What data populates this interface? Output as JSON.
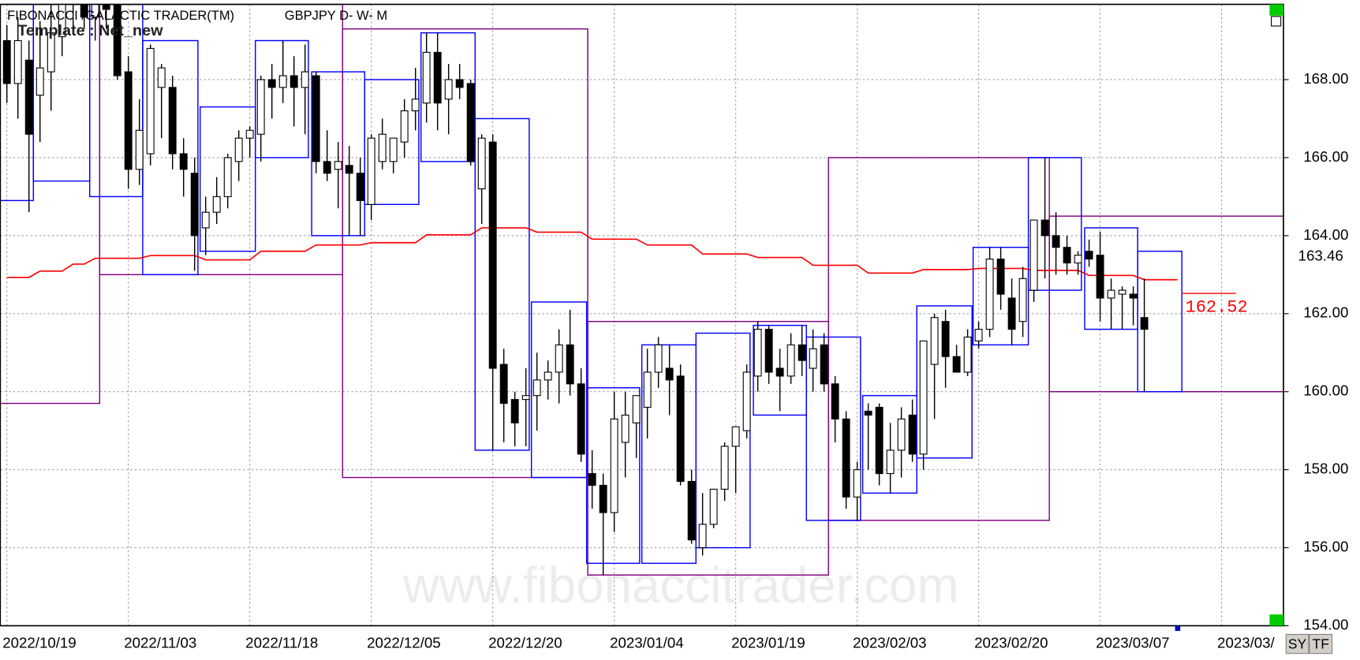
{
  "chart_data": {
    "type": "candlestick",
    "title": "FIBONACCI /GALACTIC TRADER(TM)",
    "symbol": "GBPJPY D- W- M",
    "template": "Template : Net_new",
    "watermark": "www.fibonaccitrader.com",
    "buttons": [
      "SY",
      "TF"
    ],
    "grid": true,
    "xlim": [
      -0.6,
      115.6
    ],
    "ylim": [
      154,
      169.93
    ],
    "yticks": [
      {
        "value": 154,
        "label": "154.00"
      },
      {
        "value": 156,
        "label": "156.00"
      },
      {
        "value": 158,
        "label": "158.00"
      },
      {
        "value": 160,
        "label": "160.00"
      },
      {
        "value": 162,
        "label": "162.00"
      },
      {
        "value": 164,
        "label": "164.00"
      },
      {
        "value": 166,
        "label": "166.00"
      },
      {
        "value": 168,
        "label": "168.00"
      }
    ],
    "xticks": [
      {
        "value": 0,
        "label": "2022/10/19"
      },
      {
        "value": 11,
        "label": "2022/11/03"
      },
      {
        "value": 22,
        "label": "2022/11/18"
      },
      {
        "value": 33,
        "label": "2022/12/05"
      },
      {
        "value": 44,
        "label": "2022/12/20"
      },
      {
        "value": 55,
        "label": "2023/01/04"
      },
      {
        "value": 66,
        "label": "2023/01/19"
      },
      {
        "value": 77,
        "label": "2023/02/03"
      },
      {
        "value": 88,
        "label": "2023/02/20"
      },
      {
        "value": 99,
        "label": "2023/03/07"
      },
      {
        "value": 110,
        "label": "2023/03/"
      }
    ],
    "candle_colors": {
      "up": "#ffffff",
      "down": "#000000",
      "outline": "#000000"
    },
    "candles": [
      [
        169.0,
        169.4,
        167.4,
        167.9
      ],
      [
        167.9,
        169.6,
        167.0,
        169.0
      ],
      [
        168.5,
        169.0,
        164.6,
        166.6
      ],
      [
        167.6,
        169.5,
        166.4,
        168.3
      ],
      [
        168.2,
        170.0,
        167.2,
        169.2
      ],
      [
        169.1,
        170.5,
        168.6,
        170.2
      ],
      [
        170.0,
        170.6,
        169.2,
        170.3
      ],
      [
        170.2,
        170.6,
        169.3,
        169.6
      ],
      [
        169.6,
        170.5,
        169.0,
        170.1
      ],
      [
        170.1,
        170.6,
        169.3,
        169.8
      ],
      [
        170.0,
        170.6,
        168.0,
        168.1
      ],
      [
        168.2,
        168.6,
        165.2,
        165.7
      ],
      [
        165.7,
        167.5,
        165.3,
        166.7
      ],
      [
        166.1,
        168.9,
        165.8,
        168.8
      ],
      [
        167.8,
        168.4,
        166.5,
        168.3
      ],
      [
        167.8,
        168.1,
        165.7,
        166.1
      ],
      [
        166.1,
        166.5,
        165.0,
        165.7
      ],
      [
        165.6,
        166.0,
        163.1,
        164.0
      ],
      [
        164.2,
        165.0,
        163.5,
        164.6
      ],
      [
        164.6,
        165.5,
        164.3,
        165.0
      ],
      [
        165.0,
        166.1,
        164.7,
        166.0
      ],
      [
        165.9,
        166.7,
        165.4,
        166.5
      ],
      [
        166.5,
        166.8,
        166.0,
        166.7
      ],
      [
        166.6,
        168.1,
        165.9,
        168.0
      ],
      [
        168.0,
        168.4,
        167.0,
        167.8
      ],
      [
        167.8,
        169.0,
        167.4,
        168.1
      ],
      [
        168.1,
        168.6,
        166.8,
        167.8
      ],
      [
        167.8,
        168.9,
        166.6,
        168.2
      ],
      [
        168.1,
        168.2,
        165.6,
        165.9
      ],
      [
        165.9,
        166.7,
        165.4,
        165.6
      ],
      [
        165.7,
        166.4,
        164.7,
        165.9
      ],
      [
        165.8,
        166.3,
        164.0,
        165.6
      ],
      [
        165.6,
        166.0,
        164.0,
        164.9
      ],
      [
        164.8,
        166.6,
        164.4,
        166.5
      ],
      [
        165.9,
        167.0,
        165.7,
        166.6
      ],
      [
        165.9,
        166.4,
        165.6,
        166.5
      ],
      [
        166.4,
        167.5,
        166.0,
        167.2
      ],
      [
        167.2,
        168.3,
        166.7,
        167.5
      ],
      [
        167.4,
        169.2,
        166.9,
        168.7
      ],
      [
        168.7,
        169.2,
        166.7,
        167.4
      ],
      [
        167.5,
        168.4,
        166.6,
        168.0
      ],
      [
        168.0,
        168.4,
        167.5,
        167.8
      ],
      [
        167.9,
        168.0,
        165.8,
        165.9
      ],
      [
        165.2,
        166.6,
        164.3,
        166.5
      ],
      [
        166.4,
        166.6,
        158.5,
        160.6
      ],
      [
        160.7,
        161.1,
        158.7,
        159.7
      ],
      [
        159.8,
        160.0,
        158.6,
        159.2
      ],
      [
        159.8,
        160.6,
        158.6,
        159.9
      ],
      [
        159.9,
        161.0,
        159.0,
        160.3
      ],
      [
        160.3,
        160.8,
        159.8,
        160.5
      ],
      [
        160.5,
        161.6,
        159.7,
        161.2
      ],
      [
        161.2,
        162.1,
        159.9,
        160.2
      ],
      [
        160.2,
        160.6,
        158.2,
        158.4
      ],
      [
        157.9,
        158.5,
        157.0,
        157.6
      ],
      [
        157.6,
        157.9,
        155.3,
        156.9
      ],
      [
        156.9,
        160.0,
        156.4,
        159.3
      ],
      [
        158.7,
        160.0,
        157.8,
        159.4
      ],
      [
        159.2,
        159.9,
        158.3,
        159.9
      ],
      [
        159.6,
        161.1,
        158.8,
        160.5
      ],
      [
        160.5,
        161.4,
        160.1,
        161.2
      ],
      [
        160.6,
        161.2,
        159.4,
        160.3
      ],
      [
        160.4,
        160.7,
        157.6,
        157.7
      ],
      [
        157.7,
        158.0,
        156.1,
        156.2
      ],
      [
        156.0,
        157.4,
        155.8,
        156.6
      ],
      [
        156.6,
        157.5,
        156.5,
        157.5
      ],
      [
        157.5,
        158.7,
        157.2,
        158.6
      ],
      [
        158.6,
        159.1,
        157.4,
        159.1
      ],
      [
        159.0,
        160.7,
        158.8,
        160.5
      ],
      [
        160.4,
        161.8,
        160.0,
        161.6
      ],
      [
        161.6,
        161.7,
        160.2,
        160.5
      ],
      [
        160.6,
        161.1,
        159.5,
        160.4
      ],
      [
        160.4,
        161.5,
        160.2,
        161.2
      ],
      [
        161.2,
        161.7,
        160.4,
        160.8
      ],
      [
        160.6,
        161.6,
        160.0,
        161.1
      ],
      [
        161.2,
        161.5,
        160.0,
        160.2
      ],
      [
        160.2,
        160.4,
        158.7,
        159.3
      ],
      [
        159.3,
        159.5,
        157.0,
        157.3
      ],
      [
        157.3,
        158.2,
        156.7,
        158.0
      ],
      [
        159.5,
        159.7,
        158.0,
        159.4
      ],
      [
        159.6,
        159.7,
        157.6,
        157.9
      ],
      [
        157.9,
        159.2,
        157.4,
        158.5
      ],
      [
        158.5,
        159.6,
        157.8,
        159.3
      ],
      [
        159.4,
        159.8,
        158.2,
        158.4
      ],
      [
        158.4,
        161.3,
        158.0,
        161.3
      ],
      [
        160.7,
        162.0,
        159.3,
        161.9
      ],
      [
        161.8,
        162.1,
        160.1,
        160.9
      ],
      [
        160.9,
        161.2,
        160.5,
        160.5
      ],
      [
        160.5,
        161.6,
        160.4,
        161.4
      ],
      [
        161.3,
        161.8,
        161.1,
        161.6
      ],
      [
        161.6,
        163.7,
        161.4,
        163.4
      ],
      [
        163.4,
        163.7,
        162.1,
        162.5
      ],
      [
        162.4,
        162.9,
        161.2,
        161.6
      ],
      [
        161.8,
        163.2,
        161.4,
        162.9
      ],
      [
        162.6,
        164.4,
        162.3,
        164.4
      ],
      [
        164.4,
        166.0,
        162.9,
        164.0
      ],
      [
        164.0,
        164.6,
        163.0,
        163.7
      ],
      [
        163.7,
        164.0,
        163.0,
        163.3
      ],
      [
        163.3,
        163.6,
        163.0,
        163.5
      ],
      [
        163.6,
        163.9,
        163.2,
        163.4
      ],
      [
        163.5,
        164.1,
        161.8,
        162.4
      ],
      [
        162.4,
        162.9,
        161.6,
        162.6
      ],
      [
        162.5,
        162.7,
        161.6,
        162.6
      ],
      [
        162.5,
        162.7,
        161.7,
        162.4
      ],
      [
        161.9,
        162.9,
        160.0,
        161.6
      ]
    ],
    "monthly_boxes": {
      "color": "#800080",
      "boxes": [
        [
          -0.6,
          8.4,
          159.7,
          169.93
        ],
        [
          8.4,
          30.4,
          163.0,
          169.93
        ],
        [
          30.4,
          52.6,
          157.8,
          169.3
        ],
        [
          52.6,
          74.4,
          155.3,
          161.8
        ],
        [
          74.4,
          94.4,
          156.7,
          166.0
        ],
        [
          94.4,
          115.6,
          160.0,
          164.5
        ]
      ]
    },
    "weekly_boxes": {
      "color": "#0000ff",
      "boxes": [
        [
          -0.6,
          2.4,
          164.9,
          169.93
        ],
        [
          2.4,
          7.5,
          165.4,
          169.93
        ],
        [
          7.5,
          12.3,
          165.0,
          169.93
        ],
        [
          12.3,
          17.3,
          163.0,
          169.0
        ],
        [
          17.5,
          22.5,
          163.6,
          167.3
        ],
        [
          22.5,
          27.3,
          166.0,
          169.0
        ],
        [
          27.6,
          32.4,
          164.0,
          168.2
        ],
        [
          32.4,
          37.3,
          164.8,
          168.0
        ],
        [
          37.5,
          42.4,
          165.9,
          169.2
        ],
        [
          42.4,
          47.3,
          158.5,
          167.0
        ],
        [
          47.5,
          52.5,
          157.8,
          162.3
        ],
        [
          52.5,
          57.3,
          155.6,
          160.1
        ],
        [
          57.5,
          62.4,
          155.6,
          161.2
        ],
        [
          62.4,
          67.3,
          156.0,
          161.5
        ],
        [
          67.6,
          72.4,
          159.4,
          161.7
        ],
        [
          72.4,
          77.3,
          156.7,
          161.4
        ],
        [
          77.5,
          82.4,
          157.4,
          159.9
        ],
        [
          82.4,
          87.4,
          158.3,
          162.2
        ],
        [
          87.5,
          92.5,
          161.2,
          163.7
        ],
        [
          92.5,
          97.3,
          162.6,
          166.0
        ],
        [
          97.6,
          102.4,
          161.6,
          164.2
        ],
        [
          102.4,
          106.4,
          160.0,
          163.6
        ]
      ]
    },
    "average_line": {
      "color": "#ff0000",
      "values": [
        162.93,
        162.93,
        162.93,
        163.09,
        163.09,
        163.09,
        163.27,
        163.27,
        163.42,
        163.42,
        163.42,
        163.42,
        163.42,
        163.49,
        163.49,
        163.49,
        163.49,
        163.49,
        163.38,
        163.38,
        163.38,
        163.38,
        163.38,
        163.6,
        163.6,
        163.6,
        163.6,
        163.6,
        163.76,
        163.76,
        163.76,
        163.76,
        163.76,
        163.82,
        163.82,
        163.82,
        163.82,
        163.82,
        164.02,
        164.02,
        164.02,
        164.02,
        164.02,
        164.2,
        164.2,
        164.2,
        164.2,
        164.2,
        164.09,
        164.09,
        164.09,
        164.09,
        164.09,
        163.91,
        163.91,
        163.91,
        163.91,
        163.91,
        163.76,
        163.76,
        163.76,
        163.76,
        163.76,
        163.53,
        163.53,
        163.53,
        163.53,
        163.53,
        163.44,
        163.44,
        163.44,
        163.44,
        163.44,
        163.24,
        163.24,
        163.24,
        163.24,
        163.24,
        163.04,
        163.04,
        163.04,
        163.04,
        163.04,
        163.13,
        163.13,
        163.13,
        163.13,
        163.13,
        163.16,
        163.16,
        163.16,
        163.16,
        163.16,
        163.11,
        163.11,
        163.11,
        163.11,
        163.11,
        162.98,
        162.98,
        162.98,
        162.98,
        162.98,
        162.87,
        162.87,
        162.87,
        162.87
      ]
    },
    "last_price": 163.46,
    "projection": {
      "value": 162.52,
      "x": [
        106.4,
        111.3
      ],
      "color": "#ff0000"
    }
  }
}
